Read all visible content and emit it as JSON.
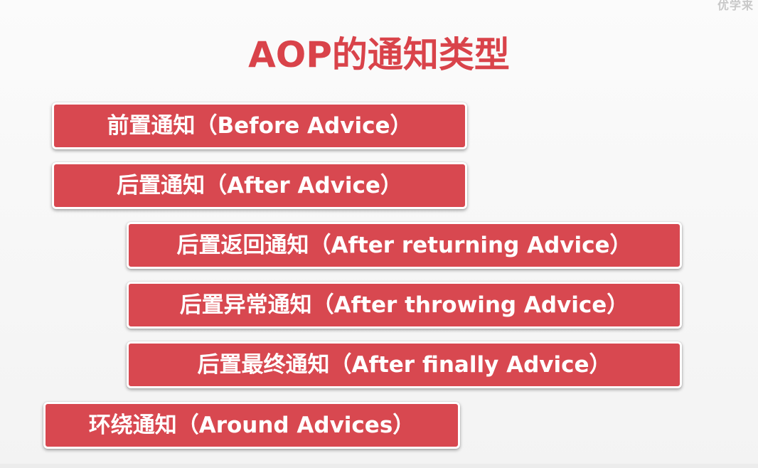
{
  "watermark": "优学来",
  "title": "AOP的通知类型",
  "advice_types": [
    {
      "label": "前置通知（Before Advice）"
    },
    {
      "label": "后置通知（After Advice）"
    },
    {
      "label": "后置返回通知（After returning Advice）"
    },
    {
      "label": "后置异常通知（After throwing Advice）"
    },
    {
      "label": "后置最终通知（After finally Advice）"
    },
    {
      "label": "环绕通知（Around Advices）"
    }
  ],
  "colors": {
    "accent": "#d84850",
    "title": "#d9434a",
    "background": "#f7f7f7",
    "box_text": "#ffffff"
  }
}
